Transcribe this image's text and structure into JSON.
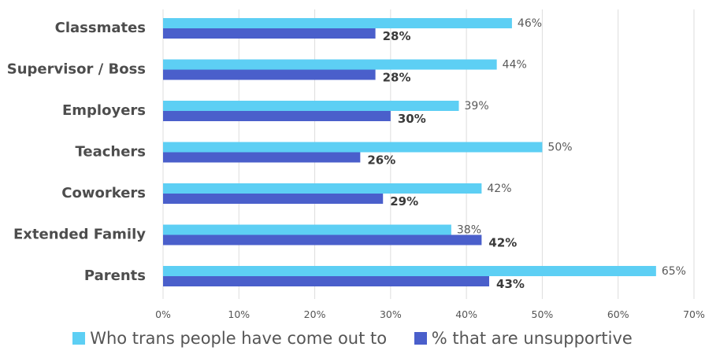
{
  "chart_data": {
    "type": "bar",
    "orientation": "horizontal",
    "categories": [
      "Classmates",
      "Supervisor / Boss",
      "Employers",
      "Teachers",
      "Coworkers",
      "Extended Family",
      "Parents"
    ],
    "series": [
      {
        "name": "Who trans people have come out to",
        "color": "#5dcff4",
        "values": [
          46,
          44,
          39,
          50,
          42,
          38,
          65
        ],
        "labels": [
          "46%",
          "44%",
          "39%",
          "50%",
          "42%",
          "38%",
          "65%"
        ]
      },
      {
        "name": "% that are unsupportive",
        "color": "#4a5fcb",
        "values": [
          28,
          28,
          30,
          26,
          29,
          42,
          43
        ],
        "labels": [
          "28%",
          "28%",
          "30%",
          "26%",
          "29%",
          "42%",
          "43%"
        ]
      }
    ],
    "xlim": [
      0,
      70
    ],
    "xticks": [
      0,
      10,
      20,
      30,
      40,
      50,
      60,
      70
    ],
    "xtick_labels": [
      "0%",
      "10%",
      "20%",
      "30%",
      "40%",
      "50%",
      "60%",
      "70%"
    ],
    "grid": true,
    "legend_position": "bottom"
  }
}
